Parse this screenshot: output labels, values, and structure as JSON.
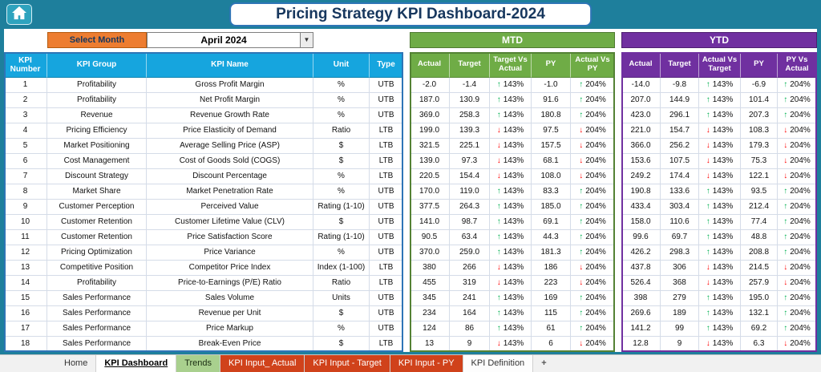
{
  "title": "Pricing Strategy KPI Dashboard-2024",
  "controls": {
    "select_month_label": "Select Month",
    "month_value": "April 2024"
  },
  "sections": {
    "mtd_label": "MTD",
    "ytd_label": "YTD"
  },
  "table": {
    "base_headers": [
      "KPI Number",
      "KPI Group",
      "KPI Name",
      "Unit",
      "Type"
    ],
    "mtd_headers": [
      "Actual",
      "Target",
      "Target Vs Actual",
      "PY",
      "Actual Vs PY"
    ],
    "ytd_headers": [
      "Actual",
      "Target",
      "Actual Vs Target",
      "PY",
      "PY Vs Actual"
    ],
    "rows": [
      {
        "n": "1",
        "group": "Profitability",
        "name": "Gross Profit Margin",
        "unit": "%",
        "type": "UTB",
        "trend": "up",
        "mtd": [
          "-2.0",
          "-1.4",
          "143%",
          "-1.0",
          "204%"
        ],
        "ytd": [
          "-14.0",
          "-9.8",
          "143%",
          "-6.9",
          "204%"
        ]
      },
      {
        "n": "2",
        "group": "Profitability",
        "name": "Net Profit Margin",
        "unit": "%",
        "type": "UTB",
        "trend": "up",
        "mtd": [
          "187.0",
          "130.9",
          "143%",
          "91.6",
          "204%"
        ],
        "ytd": [
          "207.0",
          "144.9",
          "143%",
          "101.4",
          "204%"
        ]
      },
      {
        "n": "3",
        "group": "Revenue",
        "name": "Revenue Growth Rate",
        "unit": "%",
        "type": "UTB",
        "trend": "up",
        "mtd": [
          "369.0",
          "258.3",
          "143%",
          "180.8",
          "204%"
        ],
        "ytd": [
          "423.0",
          "296.1",
          "143%",
          "207.3",
          "204%"
        ]
      },
      {
        "n": "4",
        "group": "Pricing Efficiency",
        "name": "Price Elasticity of Demand",
        "unit": "Ratio",
        "type": "LTB",
        "trend": "down",
        "mtd": [
          "199.0",
          "139.3",
          "143%",
          "97.5",
          "204%"
        ],
        "ytd": [
          "221.0",
          "154.7",
          "143%",
          "108.3",
          "204%"
        ]
      },
      {
        "n": "5",
        "group": "Market Positioning",
        "name": "Average Selling Price (ASP)",
        "unit": "$",
        "type": "LTB",
        "trend": "down",
        "mtd": [
          "321.5",
          "225.1",
          "143%",
          "157.5",
          "204%"
        ],
        "ytd": [
          "366.0",
          "256.2",
          "143%",
          "179.3",
          "204%"
        ]
      },
      {
        "n": "6",
        "group": "Cost Management",
        "name": "Cost of Goods Sold (COGS)",
        "unit": "$",
        "type": "LTB",
        "trend": "down",
        "mtd": [
          "139.0",
          "97.3",
          "143%",
          "68.1",
          "204%"
        ],
        "ytd": [
          "153.6",
          "107.5",
          "143%",
          "75.3",
          "204%"
        ]
      },
      {
        "n": "7",
        "group": "Discount Strategy",
        "name": "Discount Percentage",
        "unit": "%",
        "type": "LTB",
        "trend": "down",
        "mtd": [
          "220.5",
          "154.4",
          "143%",
          "108.0",
          "204%"
        ],
        "ytd": [
          "249.2",
          "174.4",
          "143%",
          "122.1",
          "204%"
        ]
      },
      {
        "n": "8",
        "group": "Market Share",
        "name": "Market Penetration Rate",
        "unit": "%",
        "type": "UTB",
        "trend": "up",
        "mtd": [
          "170.0",
          "119.0",
          "143%",
          "83.3",
          "204%"
        ],
        "ytd": [
          "190.8",
          "133.6",
          "143%",
          "93.5",
          "204%"
        ]
      },
      {
        "n": "9",
        "group": "Customer Perception",
        "name": "Perceived Value",
        "unit": "Rating (1-10)",
        "type": "UTB",
        "trend": "up",
        "mtd": [
          "377.5",
          "264.3",
          "143%",
          "185.0",
          "204%"
        ],
        "ytd": [
          "433.4",
          "303.4",
          "143%",
          "212.4",
          "204%"
        ]
      },
      {
        "n": "10",
        "group": "Customer Retention",
        "name": "Customer Lifetime Value (CLV)",
        "unit": "$",
        "type": "UTB",
        "trend": "up",
        "mtd": [
          "141.0",
          "98.7",
          "143%",
          "69.1",
          "204%"
        ],
        "ytd": [
          "158.0",
          "110.6",
          "143%",
          "77.4",
          "204%"
        ]
      },
      {
        "n": "11",
        "group": "Customer Retention",
        "name": "Price Satisfaction Score",
        "unit": "Rating (1-10)",
        "type": "UTB",
        "trend": "up",
        "mtd": [
          "90.5",
          "63.4",
          "143%",
          "44.3",
          "204%"
        ],
        "ytd": [
          "99.6",
          "69.7",
          "143%",
          "48.8",
          "204%"
        ]
      },
      {
        "n": "12",
        "group": "Pricing Optimization",
        "name": "Price Variance",
        "unit": "%",
        "type": "UTB",
        "trend": "up",
        "mtd": [
          "370.0",
          "259.0",
          "143%",
          "181.3",
          "204%"
        ],
        "ytd": [
          "426.2",
          "298.3",
          "143%",
          "208.8",
          "204%"
        ]
      },
      {
        "n": "13",
        "group": "Competitive Position",
        "name": "Competitor Price Index",
        "unit": "Index (1-100)",
        "type": "LTB",
        "trend": "down",
        "mtd": [
          "380",
          "266",
          "143%",
          "186",
          "204%"
        ],
        "ytd": [
          "437.8",
          "306",
          "143%",
          "214.5",
          "204%"
        ]
      },
      {
        "n": "14",
        "group": "Profitability",
        "name": "Price-to-Earnings (P/E) Ratio",
        "unit": "Ratio",
        "type": "LTB",
        "trend": "down",
        "mtd": [
          "455",
          "319",
          "143%",
          "223",
          "204%"
        ],
        "ytd": [
          "526.4",
          "368",
          "143%",
          "257.9",
          "204%"
        ]
      },
      {
        "n": "15",
        "group": "Sales Performance",
        "name": "Sales Volume",
        "unit": "Units",
        "type": "UTB",
        "trend": "up",
        "mtd": [
          "345",
          "241",
          "143%",
          "169",
          "204%"
        ],
        "ytd": [
          "398",
          "279",
          "143%",
          "195.0",
          "204%"
        ]
      },
      {
        "n": "16",
        "group": "Sales Performance",
        "name": "Revenue per Unit",
        "unit": "$",
        "type": "UTB",
        "trend": "up",
        "mtd": [
          "234",
          "164",
          "143%",
          "115",
          "204%"
        ],
        "ytd": [
          "269.6",
          "189",
          "143%",
          "132.1",
          "204%"
        ]
      },
      {
        "n": "17",
        "group": "Sales Performance",
        "name": "Price Markup",
        "unit": "%",
        "type": "UTB",
        "trend": "up",
        "mtd": [
          "124",
          "86",
          "143%",
          "61",
          "204%"
        ],
        "ytd": [
          "141.2",
          "99",
          "143%",
          "69.2",
          "204%"
        ]
      },
      {
        "n": "18",
        "group": "Sales Performance",
        "name": "Break-Even Price",
        "unit": "$",
        "type": "LTB",
        "trend": "down",
        "mtd": [
          "13",
          "9",
          "143%",
          "6",
          "204%"
        ],
        "ytd": [
          "12.8",
          "9",
          "143%",
          "6.3",
          "204%"
        ]
      }
    ]
  },
  "tabs": [
    {
      "label": "Home",
      "style": "plain"
    },
    {
      "label": "KPI Dashboard",
      "style": "active"
    },
    {
      "label": "Trends",
      "style": "green"
    },
    {
      "label": "KPI Input_ Actual",
      "style": "red"
    },
    {
      "label": "KPI Input - Target",
      "style": "red"
    },
    {
      "label": "KPI Input - PY",
      "style": "red"
    },
    {
      "label": "KPI Definition",
      "style": "light"
    },
    {
      "label": "+",
      "style": "plus"
    }
  ],
  "colors": {
    "teal": "#1E7F9C",
    "header_blue": "#16A5DE",
    "green": "#6FAC46",
    "green_dark": "#548235",
    "purple": "#7030A0",
    "orange": "#ED7D31",
    "title_navy": "#17375E",
    "arrow_green": "#00B050",
    "arrow_red": "#FF0000",
    "tab_red": "#D0421B",
    "tab_green": "#A9D08E"
  }
}
